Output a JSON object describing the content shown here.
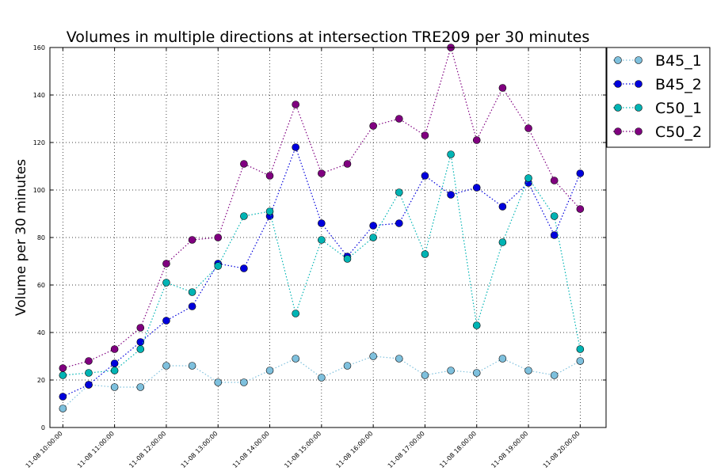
{
  "chart_data": {
    "type": "line",
    "title": "Volumes in multiple directions at intersection TRE209 per 30 minutes",
    "xlabel": "",
    "ylabel": "Volume per 30 minutes",
    "ylim": [
      0,
      160
    ],
    "yticks": [
      "0",
      "20",
      "40",
      "60",
      "80",
      "100",
      "120",
      "140",
      "160"
    ],
    "xlim": [
      "11-08 09:45",
      "11-08 20:30"
    ],
    "xticks": [
      {
        "t": "11-08 10:00",
        "label": "11-08 10:00:00"
      },
      {
        "t": "11-08 11:00",
        "label": "11-08 11:00:00"
      },
      {
        "t": "11-08 12:00",
        "label": "11-08 12:00:00"
      },
      {
        "t": "11-08 13:00",
        "label": "11-08 13:00:00"
      },
      {
        "t": "11-08 14:00",
        "label": "11-08 14:00:00"
      },
      {
        "t": "11-08 15:00",
        "label": "11-08 15:00:00"
      },
      {
        "t": "11-08 16:00",
        "label": "11-08 16:00:00"
      },
      {
        "t": "11-08 17:00",
        "label": "11-08 17:00:00"
      },
      {
        "t": "11-08 18:00",
        "label": "11-08 18:00:00"
      },
      {
        "t": "11-08 19:00",
        "label": "11-08 19:00:00"
      },
      {
        "t": "11-08 20:00",
        "label": "11-08 20:00:00"
      }
    ],
    "x": [
      "11-08 10:00",
      "11-08 10:30",
      "11-08 11:00",
      "11-08 11:30",
      "11-08 12:00",
      "11-08 12:30",
      "11-08 13:00",
      "11-08 13:30",
      "11-08 14:00",
      "11-08 14:30",
      "11-08 15:00",
      "11-08 15:30",
      "11-08 16:00",
      "11-08 16:30",
      "11-08 17:00",
      "11-08 17:30",
      "11-08 18:00",
      "11-08 18:30",
      "11-08 19:00",
      "11-08 19:30",
      "11-08 20:00"
    ],
    "grid": true,
    "legend_position": "outside-top-right",
    "series": [
      {
        "name": "B45_1",
        "color": "#7ec0dd",
        "values": [
          8,
          18,
          17,
          17,
          26,
          26,
          19,
          19,
          24,
          29,
          21,
          26,
          30,
          29,
          22,
          24,
          23,
          29,
          24,
          22,
          28
        ]
      },
      {
        "name": "B45_2",
        "color": "#0000dd",
        "values": [
          13,
          18,
          27,
          36,
          45,
          51,
          69,
          67,
          89,
          118,
          86,
          72,
          85,
          86,
          106,
          98,
          101,
          93,
          103,
          81,
          107
        ]
      },
      {
        "name": "C50_1",
        "color": "#00b4b4",
        "values": [
          22,
          23,
          24,
          33,
          61,
          57,
          68,
          89,
          91,
          48,
          79,
          71,
          80,
          99,
          73,
          115,
          43,
          78,
          105,
          89,
          33
        ]
      },
      {
        "name": "C50_2",
        "color": "#800080",
        "values": [
          25,
          28,
          33,
          42,
          69,
          79,
          80,
          111,
          106,
          136,
          107,
          111,
          127,
          130,
          123,
          160,
          121,
          143,
          126,
          104,
          92
        ]
      }
    ]
  }
}
